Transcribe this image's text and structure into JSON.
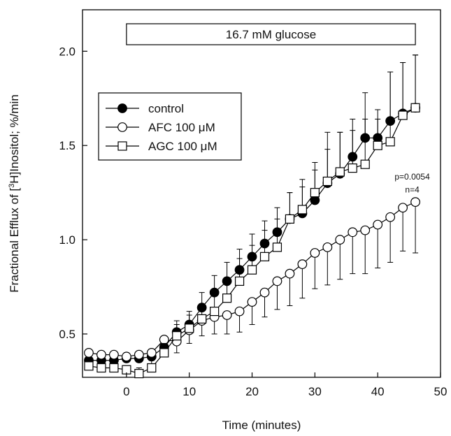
{
  "chart_data": {
    "type": "line",
    "xlabel": "Time (minutes)",
    "ylabel_main": "Fractional Efflux of [",
    "ylabel_sup": "3",
    "ylabel_rest": "H]Inositol; %/min",
    "xlim": [
      -7,
      50
    ],
    "ylim": [
      0.27,
      2.22
    ],
    "xticks": [
      0,
      10,
      20,
      30,
      40,
      50
    ],
    "yticks": [
      0.5,
      1.0,
      1.5,
      2.0
    ],
    "ytick_labels": [
      "0.5",
      "1.0",
      "1.5",
      "2.0"
    ],
    "grid": false,
    "legend_position": "upper-left",
    "banner": {
      "label": "16.7 mM glucose",
      "x_start": 0,
      "x_end": 46
    },
    "annotations": [
      {
        "text": "p=0.0054",
        "x": 45.5,
        "y": 1.32
      },
      {
        "text": "n=4",
        "x": 45.5,
        "y": 1.25
      }
    ],
    "x": [
      -6,
      -4,
      -2,
      0,
      2,
      4,
      6,
      8,
      10,
      12,
      14,
      16,
      18,
      20,
      22,
      24,
      26,
      28,
      30,
      32,
      34,
      36,
      38,
      40,
      42,
      44,
      46
    ],
    "series": [
      {
        "name": "control",
        "marker": "filled-circle",
        "values": [
          0.36,
          0.36,
          0.36,
          0.37,
          0.37,
          0.38,
          0.43,
          0.51,
          0.55,
          0.64,
          0.72,
          0.78,
          0.84,
          0.91,
          0.98,
          1.04,
          1.11,
          1.14,
          1.21,
          1.3,
          1.35,
          1.44,
          1.54,
          1.54,
          1.63,
          1.67,
          1.7
        ],
        "err_up": [
          0.03,
          0.03,
          0.03,
          0.03,
          0.03,
          0.04,
          0.05,
          0.06,
          0.07,
          0.08,
          0.09,
          0.1,
          0.11,
          0.12,
          0.12,
          0.13,
          0.14,
          0.14,
          0.16,
          0.18,
          0.22,
          0.2,
          0.24,
          0.15,
          0.26,
          0.27,
          0.28
        ]
      },
      {
        "name": "AFC 100 μM",
        "marker": "open-circle",
        "values": [
          0.4,
          0.39,
          0.39,
          0.38,
          0.39,
          0.4,
          0.47,
          0.46,
          0.52,
          0.57,
          0.59,
          0.6,
          0.62,
          0.67,
          0.72,
          0.78,
          0.82,
          0.87,
          0.93,
          0.96,
          1.0,
          1.04,
          1.05,
          1.08,
          1.12,
          1.17,
          1.2
        ],
        "err_down": [
          0.03,
          0.03,
          0.03,
          0.03,
          0.04,
          0.04,
          0.05,
          0.06,
          0.07,
          0.08,
          0.09,
          0.1,
          0.11,
          0.12,
          0.13,
          0.15,
          0.17,
          0.18,
          0.19,
          0.2,
          0.21,
          0.22,
          0.23,
          0.23,
          0.24,
          0.23,
          0.27
        ]
      },
      {
        "name": "AGC 100 μM",
        "marker": "open-square",
        "values": [
          0.33,
          0.32,
          0.32,
          0.31,
          0.29,
          0.32,
          0.4,
          0.49,
          0.53,
          0.58,
          0.62,
          0.69,
          0.78,
          0.84,
          0.91,
          0.96,
          1.11,
          1.16,
          1.25,
          1.31,
          1.36,
          1.38,
          1.4,
          1.5,
          1.52,
          1.66,
          1.7
        ],
        "err_up": [
          0.02,
          0.02,
          0.02,
          0.02,
          0.03,
          0.04,
          0.05,
          0.06,
          0.07,
          0.08,
          0.1,
          0.11,
          0.12,
          0.13,
          0.14,
          0.15,
          0.14,
          0.16,
          0.16,
          0.26,
          0.21,
          0.2,
          0.24,
          0.14,
          0.37,
          0.28,
          0.28
        ]
      }
    ]
  }
}
